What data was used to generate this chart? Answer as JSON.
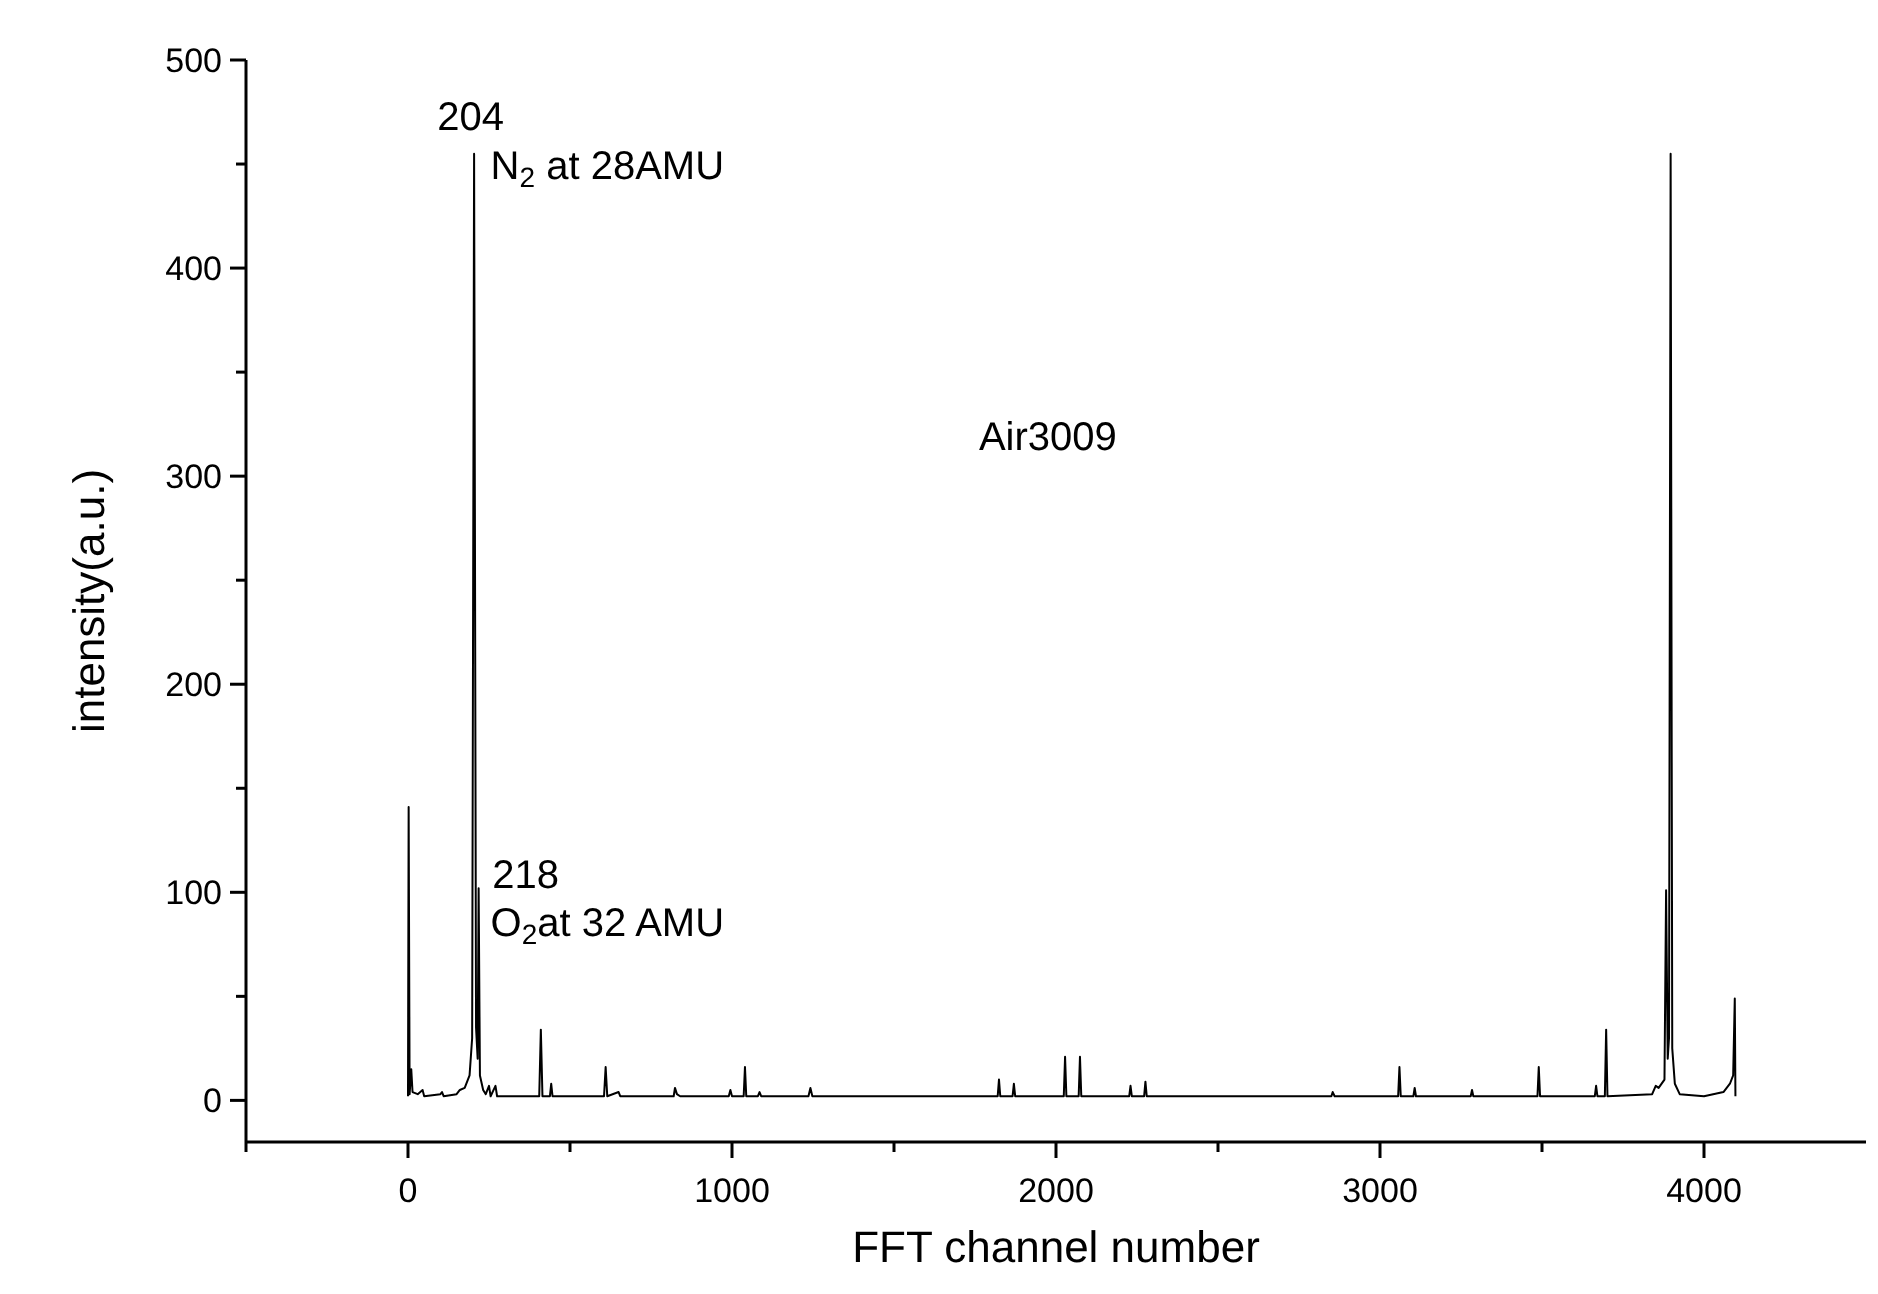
{
  "chart_data": {
    "type": "line",
    "xlabel": "FFT channel number",
    "ylabel": "intensity(a.u.)",
    "xlim": [
      -500,
      4500
    ],
    "ylim": [
      -20,
      500
    ],
    "xticks": [
      {
        "value": -500,
        "label": null
      },
      0,
      {
        "value": 500,
        "label": null
      },
      1000,
      {
        "value": 1500,
        "label": null
      },
      2000,
      {
        "value": 2500,
        "label": null
      },
      3000,
      {
        "value": 3500,
        "label": null
      },
      4000
    ],
    "yticks": [
      0,
      {
        "value": 50,
        "label": null
      },
      100,
      {
        "value": 150,
        "label": null
      },
      200,
      {
        "value": 250,
        "label": null
      },
      300,
      {
        "value": 350,
        "label": null
      },
      400,
      {
        "value": 450,
        "label": null
      },
      500
    ],
    "grid": false,
    "marker": "none",
    "line_style": "solid",
    "annotations": [
      "204",
      "N$_{2}$ at 28AMU",
      "218",
      "O$_{2}$at 32 AMU",
      "Air3009"
    ],
    "series": [
      {
        "color": "#000000",
        "x": [
          0,
          2,
          5,
          10,
          14,
          30,
          45,
          50,
          100,
          105,
          110,
          150,
          160,
          175,
          190,
          198,
          204,
          210,
          215,
          218,
          222,
          232,
          240,
          250,
          255,
          270,
          275,
          300,
          405,
          410,
          415,
          438,
          442,
          446,
          500,
          605,
          610,
          615,
          650,
          655,
          820,
          824,
          830,
          840,
          990,
          995,
          1000,
          1036,
          1040,
          1044,
          1080,
          1085,
          1090,
          1236,
          1242,
          1248,
          1500,
          1820,
          1824,
          1828,
          1866,
          1870,
          1874,
          2024,
          2028,
          2032,
          2070,
          2074,
          2078,
          2100,
          2226,
          2230,
          2234,
          2272,
          2276,
          2280,
          2500,
          2850,
          2854,
          2860,
          3056,
          3060,
          3064,
          3103,
          3107,
          3111,
          3280,
          3284,
          3288,
          3486,
          3490,
          3494,
          3663,
          3667,
          3671,
          3694,
          3698,
          3702,
          3840,
          3851,
          3860,
          3878,
          3883,
          3888,
          3892,
          3897,
          3902,
          3910,
          3925,
          4000,
          4060,
          4080,
          4090,
          4095,
          4097
        ],
        "values": [
          2,
          141,
          3,
          15,
          4,
          3,
          5,
          2,
          3,
          4,
          2,
          3,
          5,
          6,
          12,
          30,
          455,
          35,
          20,
          102,
          12,
          5,
          3,
          7,
          2,
          7,
          2,
          2,
          2,
          34,
          2,
          2,
          8,
          2,
          2,
          2,
          16,
          2,
          4,
          2,
          2,
          6,
          3,
          2,
          2,
          5,
          2,
          2,
          16,
          2,
          2,
          4,
          2,
          2,
          6,
          2,
          2,
          2,
          10,
          2,
          2,
          8,
          2,
          2,
          21,
          2,
          2,
          21,
          2,
          2,
          2,
          7,
          2,
          2,
          9,
          2,
          2,
          2,
          4,
          2,
          2,
          16,
          2,
          2,
          6,
          2,
          2,
          5,
          2,
          2,
          16,
          2,
          2,
          7,
          2,
          2,
          34,
          2,
          3,
          7,
          6,
          10,
          101,
          20,
          30,
          455,
          25,
          8,
          3,
          2,
          4,
          8,
          12,
          49,
          2
        ]
      }
    ]
  }
}
